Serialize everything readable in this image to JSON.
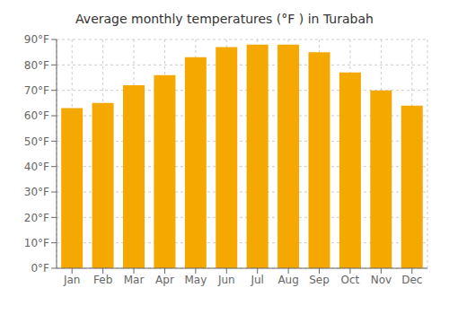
{
  "chart_data": {
    "type": "bar",
    "title": "Average monthly temperatures (°F ) in Turabah",
    "categories": [
      "Jan",
      "Feb",
      "Mar",
      "Apr",
      "May",
      "Jun",
      "Jul",
      "Aug",
      "Sep",
      "Oct",
      "Nov",
      "Dec"
    ],
    "values": [
      63,
      65,
      72,
      76,
      83,
      87,
      88,
      88,
      85,
      77,
      70,
      64
    ],
    "color": "#F5A800",
    "ylim": [
      0,
      90
    ],
    "yticks": [
      {
        "value": 0,
        "label": "0°F"
      },
      {
        "value": 10,
        "label": "10°F"
      },
      {
        "value": 20,
        "label": "20°F"
      },
      {
        "value": 30,
        "label": "30°F"
      },
      {
        "value": 40,
        "label": "40°F"
      },
      {
        "value": 50,
        "label": "50°F"
      },
      {
        "value": 60,
        "label": "60°F"
      },
      {
        "value": 70,
        "label": "70°F"
      },
      {
        "value": 80,
        "label": "80°F"
      },
      {
        "value": 90,
        "label": "90°F"
      }
    ],
    "grid": true
  }
}
